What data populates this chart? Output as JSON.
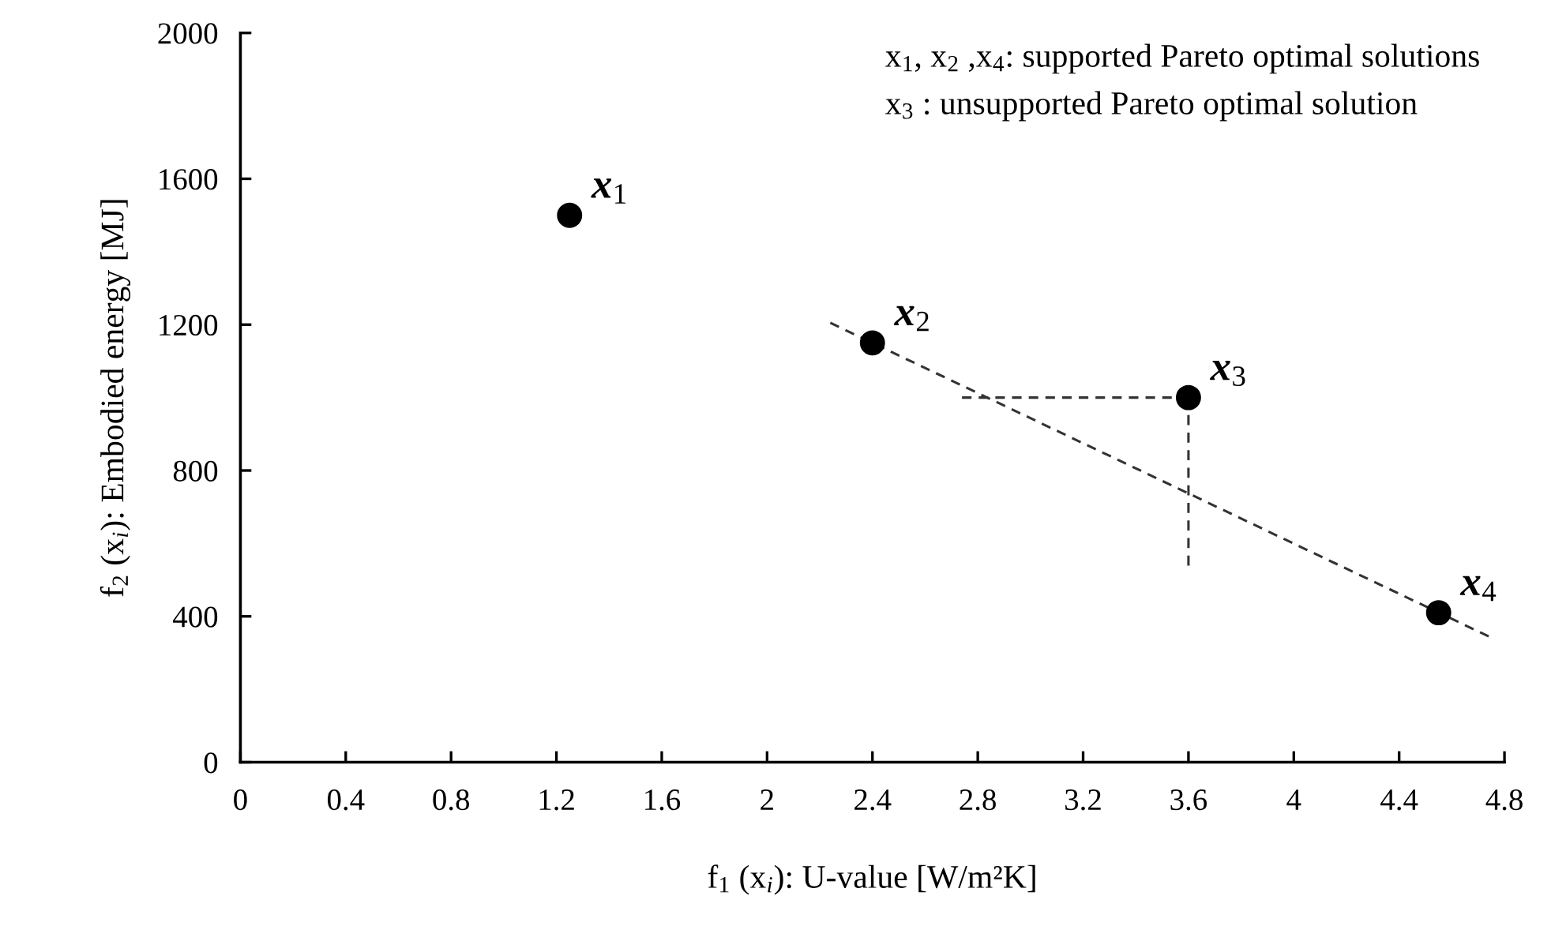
{
  "chart_data": {
    "type": "scatter",
    "xlabel": "f$_{1}$ (x$_{i}$): U-value [W/m²K]",
    "ylabel": "f$_{2}$ (x$_{i}$): Embodied energy [MJ]",
    "xlim": [
      0,
      4.8
    ],
    "ylim": [
      0,
      2000
    ],
    "xticks": [
      0,
      0.4,
      0.8,
      1.2,
      1.6,
      2,
      2.4,
      2.8,
      3.2,
      3.6,
      4,
      4.4,
      4.8
    ],
    "yticks": [
      0,
      400,
      800,
      1200,
      1600,
      2000
    ],
    "grid": false,
    "legend": false,
    "series": [
      {
        "type": "scatter",
        "color": "#000000",
        "marker": "circle",
        "x": [
          1.25,
          2.4,
          3.6,
          4.55
        ],
        "values": [
          1500,
          1150,
          1000,
          410
        ]
      },
      {
        "type": "line",
        "color": "#333333",
        "line_style": "dashed",
        "marker": "none",
        "x": [
          2.24,
          4.74
        ],
        "values": [
          1205,
          345
        ]
      },
      {
        "type": "line",
        "color": "#333333",
        "line_style": "dashed",
        "marker": "none",
        "x": [
          2.74,
          3.6
        ],
        "values": [
          1000,
          1000
        ]
      },
      {
        "type": "line",
        "color": "#333333",
        "line_style": "dashed",
        "marker": "none",
        "x": [
          3.6,
          3.6
        ],
        "values": [
          1000,
          539
        ]
      }
    ],
    "annotations": [
      "x$_{1}$, x$_{2}$ ,x$_{4}$: supported Pareto optimal solutions",
      "x$_{3}$ : unsupported Pareto optimal solution",
      {
        "text": "x$_{1}$",
        "x": 1.25,
        "y": 1500
      },
      {
        "text": "x$_{2}$",
        "x": 2.4,
        "y": 1150
      },
      {
        "text": "x$_{3}$",
        "x": 3.6,
        "y": 1000
      },
      {
        "text": "x$_{4}$",
        "x": 4.55,
        "y": 410
      }
    ]
  }
}
